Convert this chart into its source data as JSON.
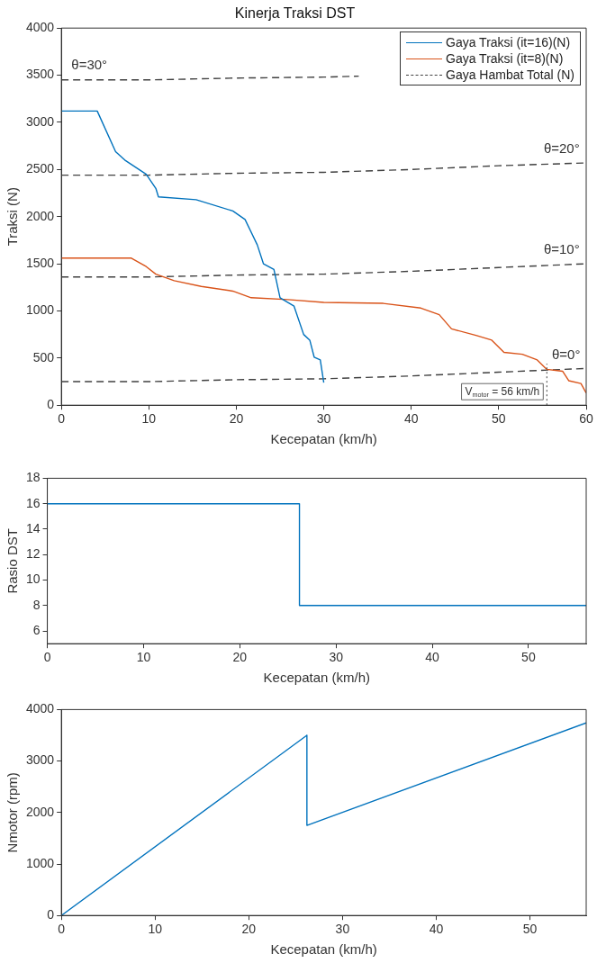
{
  "chart_data": [
    {
      "type": "line",
      "title": "Kinerja Traksi DST",
      "xlabel": "Kecepatan (km/h)",
      "ylabel": "Traksi (N)",
      "xlim": [
        0,
        60
      ],
      "ylim": [
        0,
        4000
      ],
      "xticks": [
        0,
        10,
        20,
        30,
        40,
        50,
        60
      ],
      "yticks": [
        0,
        500,
        1000,
        1500,
        2000,
        2500,
        3000,
        3500,
        4000
      ],
      "legend": "top right",
      "marker": "none",
      "series": [
        {
          "name": "Gaya Traksi (it=16)(N)",
          "color": "#0072bd",
          "x": [
            0,
            4.1,
            6.2,
            7.25,
            9.7,
            10.8,
            11.1,
            15.4,
            19.6,
            21,
            22.4,
            23.1,
            24.3,
            25,
            26.6,
            27.7,
            28.4,
            28.9,
            29.6,
            30
          ],
          "values": [
            3120,
            3120,
            2690,
            2600,
            2450,
            2300,
            2210,
            2180,
            2060,
            1970,
            1700,
            1500,
            1440,
            1140,
            1050,
            750,
            690,
            510,
            480,
            240
          ]
        },
        {
          "name": "Gaya Traksi (it=8)(N)",
          "color": "#d95319",
          "x": [
            0,
            8,
            9.7,
            10.8,
            12.9,
            16,
            19.6,
            21.7,
            25.9,
            30,
            36.8,
            41.1,
            43.2,
            44.6,
            47.4,
            49.2,
            50.6,
            52.7,
            54.4,
            55.5,
            57.3,
            58,
            59.4,
            60
          ],
          "values": [
            1560,
            1560,
            1470,
            1390,
            1320,
            1260,
            1210,
            1140,
            1120,
            1090,
            1080,
            1030,
            960,
            810,
            740,
            690,
            560,
            540,
            480,
            380,
            360,
            260,
            230,
            130
          ]
        },
        {
          "name": "Gaya Hambat Total (N)",
          "color": "#404040",
          "line_style": "dashed",
          "x": [
            0,
            10,
            20,
            30,
            40,
            50,
            60
          ],
          "values": [
            250,
            250,
            270,
            280,
            310,
            350,
            390
          ]
        },
        {
          "color": "#404040",
          "line_style": "dashed",
          "x": [
            0,
            10,
            20,
            30,
            40,
            50,
            60
          ],
          "values": [
            1360,
            1360,
            1380,
            1390,
            1420,
            1460,
            1500
          ]
        },
        {
          "color": "#404040",
          "line_style": "dashed",
          "x": [
            0,
            10,
            20,
            30,
            40,
            50,
            60
          ],
          "values": [
            2440,
            2440,
            2460,
            2470,
            2500,
            2540,
            2570
          ]
        },
        {
          "color": "#404040",
          "line_style": "dashed",
          "x": [
            0,
            10,
            20,
            30,
            34
          ],
          "values": [
            3450,
            3450,
            3470,
            3480,
            3490
          ]
        }
      ],
      "annotations": [
        {
          "text": "θ=30°",
          "x": 3.2,
          "y": 3450
        },
        {
          "text": "θ=20°",
          "x": 57.2,
          "y": 2560
        },
        {
          "text": "θ=10°",
          "x": 57.2,
          "y": 1490
        },
        {
          "text": "θ=0°",
          "x": 57.7,
          "y": 380
        }
      ],
      "ref_lines": [
        {
          "axis": "x",
          "value": 55.5,
          "label": "V$_{motor}$ = 56 km/h",
          "line_style": "dotted",
          "color": "#404040"
        }
      ]
    },
    {
      "type": "step",
      "xlabel": "Kecepatan (km/h)",
      "ylabel": "Rasio DST",
      "xlim": [
        0,
        56
      ],
      "ylim": [
        5,
        18
      ],
      "xticks": [
        0,
        10,
        20,
        30,
        40,
        50
      ],
      "yticks": [
        6,
        8,
        10,
        12,
        14,
        16,
        18
      ],
      "marker": "none",
      "series": [
        {
          "color": "#0072bd",
          "x": [
            0,
            26.2,
            56
          ],
          "values": [
            16,
            8,
            8
          ]
        }
      ]
    },
    {
      "type": "line",
      "xlabel": "Kecepatan (km/h)",
      "ylabel": "Nmotor (rpm)",
      "xlim": [
        0,
        56
      ],
      "ylim": [
        0,
        4000
      ],
      "xticks": [
        0,
        10,
        20,
        30,
        40,
        50
      ],
      "yticks": [
        0,
        1000,
        2000,
        3000,
        4000
      ],
      "marker": "none",
      "series": [
        {
          "color": "#0072bd",
          "x": [
            0,
            26.2,
            26.2,
            56
          ],
          "values": [
            0,
            3500,
            1750,
            3740
          ]
        }
      ]
    }
  ]
}
